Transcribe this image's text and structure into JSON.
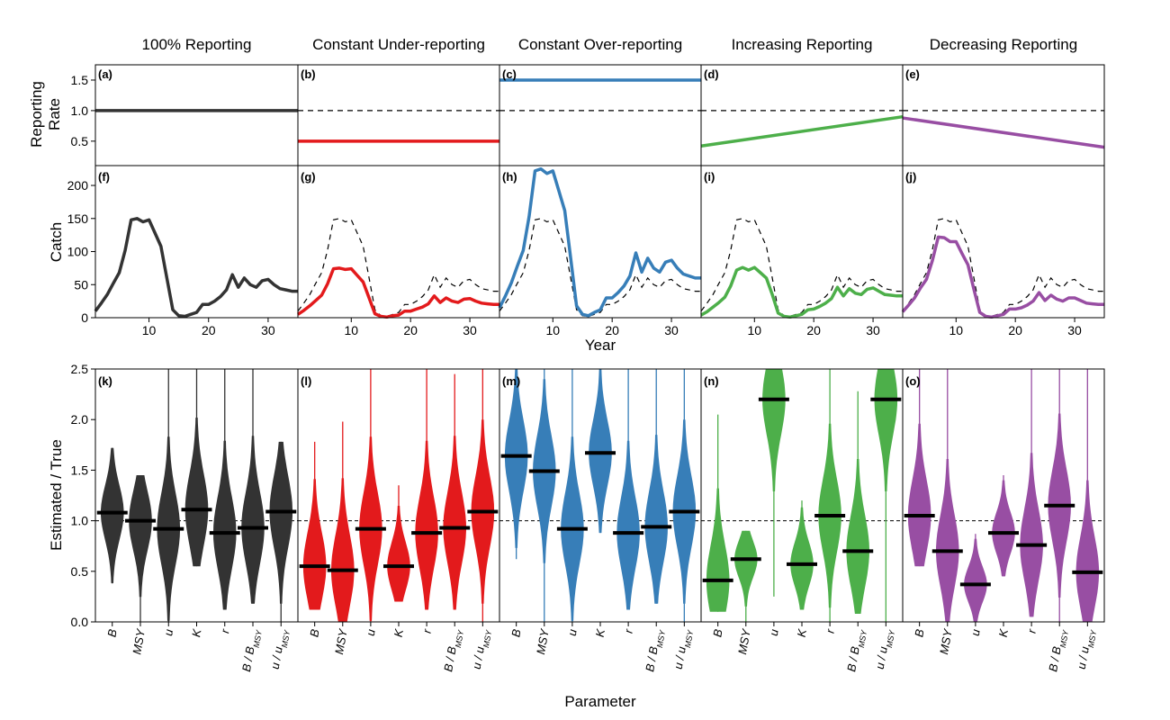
{
  "figure": {
    "row_labels": {
      "rate": "Reporting\nRate",
      "catch": "Catch",
      "ratio": "Estimated / True",
      "year": "Year",
      "parameter": "Parameter"
    }
  },
  "chart_data": [
    {
      "type": "line",
      "row": "reporting_rate",
      "ylabel": "Reporting Rate",
      "xlim": [
        1,
        35
      ],
      "ylim": [
        0.1,
        1.75
      ],
      "yticks": [
        0.5,
        1.0,
        1.5
      ],
      "yticklabels": [
        "0.5",
        "1.0",
        "1.5"
      ],
      "reference_line": 1.0,
      "panels": [
        {
          "letter": "(a)",
          "title": "100% Reporting",
          "color": "#333333",
          "start": 1.0,
          "end": 1.0,
          "dashed_reference": false
        },
        {
          "letter": "(b)",
          "title": "Constant Under-reporting",
          "color": "#E31A1C",
          "start": 0.5,
          "end": 0.5,
          "dashed_reference": true
        },
        {
          "letter": "(c)",
          "title": "Constant Over-reporting",
          "color": "#377EB8",
          "start": 1.5,
          "end": 1.5,
          "dashed_reference": true
        },
        {
          "letter": "(d)",
          "title": "Increasing Reporting",
          "color": "#4DAF4A",
          "start": 0.42,
          "end": 0.9,
          "dashed_reference": true
        },
        {
          "letter": "(e)",
          "title": "Decreasing Reporting",
          "color": "#984EA3",
          "start": 0.88,
          "end": 0.4,
          "dashed_reference": true
        }
      ]
    },
    {
      "type": "line",
      "row": "catch",
      "ylabel": "Catch",
      "xlabel": "Year",
      "xlim": [
        1,
        35
      ],
      "ylim": [
        0,
        230
      ],
      "yticks": [
        0,
        50,
        100,
        150,
        200
      ],
      "yticklabels": [
        "0",
        "50",
        "100",
        "150",
        "200"
      ],
      "xticks": [
        10,
        20,
        30
      ],
      "xticklabels": [
        "10",
        "20",
        "30"
      ],
      "years": [
        1,
        2,
        3,
        4,
        5,
        6,
        7,
        8,
        9,
        10,
        11,
        12,
        13,
        14,
        15,
        16,
        17,
        18,
        19,
        20,
        21,
        22,
        23,
        24,
        25,
        26,
        27,
        28,
        29,
        30,
        31,
        32,
        33,
        34,
        35
      ],
      "true_catch": [
        10,
        22,
        35,
        52,
        68,
        102,
        148,
        150,
        145,
        148,
        128,
        108,
        60,
        12,
        3,
        2,
        5,
        8,
        20,
        20,
        25,
        32,
        42,
        65,
        46,
        60,
        50,
        46,
        56,
        58,
        50,
        44,
        42,
        40,
        40
      ],
      "panels": [
        {
          "letter": "(f)",
          "color": "#333333",
          "reported": [
            10,
            22,
            35,
            52,
            68,
            102,
            148,
            150,
            145,
            148,
            128,
            108,
            60,
            12,
            3,
            2,
            5,
            8,
            20,
            20,
            25,
            32,
            42,
            65,
            46,
            60,
            50,
            46,
            56,
            58,
            50,
            44,
            42,
            40,
            40
          ],
          "dashed_reference": false
        },
        {
          "letter": "(g)",
          "color": "#E31A1C",
          "reported": [
            5,
            11,
            18,
            26,
            34,
            51,
            74,
            75,
            73,
            74,
            64,
            54,
            30,
            6,
            2,
            1,
            3,
            4,
            10,
            10,
            13,
            16,
            21,
            33,
            23,
            30,
            25,
            23,
            28,
            29,
            25,
            22,
            21,
            20,
            20
          ],
          "dashed_reference": true
        },
        {
          "letter": "(h)",
          "color": "#377EB8",
          "reported": [
            15,
            33,
            53,
            78,
            102,
            153,
            222,
            225,
            218,
            222,
            192,
            162,
            90,
            18,
            5,
            3,
            8,
            12,
            30,
            30,
            38,
            48,
            63,
            98,
            69,
            90,
            75,
            69,
            84,
            87,
            75,
            66,
            63,
            60,
            60
          ],
          "dashed_reference": true
        },
        {
          "letter": "(i)",
          "color": "#4DAF4A",
          "reported": [
            4,
            9,
            16,
            23,
            31,
            48,
            72,
            76,
            72,
            76,
            68,
            60,
            35,
            7,
            2,
            1,
            3,
            5,
            12,
            13,
            17,
            22,
            29,
            46,
            33,
            44,
            37,
            35,
            43,
            45,
            40,
            35,
            34,
            33,
            33
          ],
          "dashed_reference": true
        },
        {
          "letter": "(j)",
          "color": "#984EA3",
          "reported": [
            9,
            19,
            30,
            45,
            58,
            86,
            122,
            121,
            115,
            115,
            97,
            80,
            43,
            8,
            2,
            1,
            3,
            5,
            13,
            13,
            15,
            19,
            25,
            38,
            26,
            34,
            28,
            25,
            30,
            30,
            26,
            22,
            21,
            20,
            20
          ],
          "dashed_reference": true
        }
      ]
    },
    {
      "type": "violin",
      "row": "estimated_over_true",
      "ylabel": "Estimated / True",
      "xlabel": "Parameter",
      "ylim": [
        0,
        2.5
      ],
      "yticks": [
        0,
        0.5,
        1.0,
        1.5,
        2.0,
        2.5
      ],
      "yticklabels": [
        "0.0",
        "0.5",
        "1.0",
        "1.5",
        "2.0",
        "2.5"
      ],
      "reference_line": 1.0,
      "parameters": [
        {
          "label": "B"
        },
        {
          "label": "MSY"
        },
        {
          "label": "u"
        },
        {
          "label": "K"
        },
        {
          "label": "r"
        },
        {
          "label": "B / B",
          "sub": "MSY"
        },
        {
          "label": "u / u",
          "sub": "MSY"
        }
      ],
      "panels": [
        {
          "letter": "(k)",
          "color": "#333333",
          "medians": [
            1.08,
            1.0,
            0.92,
            1.11,
            0.88,
            0.93,
            1.09
          ],
          "lower": [
            0.38,
            0.0,
            0.0,
            0.55,
            0.12,
            0.18,
            0.0
          ],
          "upper": [
            1.72,
            1.45,
            2.5,
            2.5,
            2.5,
            2.5,
            1.78
          ]
        },
        {
          "letter": "(l)",
          "color": "#E31A1C",
          "medians": [
            0.55,
            0.51,
            0.92,
            0.55,
            0.88,
            0.93,
            1.09
          ],
          "lower": [
            0.12,
            0.0,
            0.0,
            0.2,
            0.12,
            0.12,
            0.0
          ],
          "upper": [
            1.78,
            1.98,
            2.5,
            1.35,
            2.5,
            2.45,
            2.5
          ]
        },
        {
          "letter": "(m)",
          "color": "#377EB8",
          "medians": [
            1.64,
            1.49,
            0.92,
            1.67,
            0.88,
            0.94,
            1.09
          ],
          "lower": [
            0.62,
            0.0,
            0.0,
            0.88,
            0.12,
            0.18,
            0.0
          ],
          "upper": [
            2.5,
            2.5,
            2.5,
            2.5,
            2.5,
            2.5,
            2.5
          ]
        },
        {
          "letter": "(n)",
          "color": "#4DAF4A",
          "medians": [
            0.41,
            0.62,
            2.2,
            0.57,
            1.05,
            0.7,
            2.2
          ],
          "lower": [
            0.1,
            0.0,
            0.25,
            0.12,
            0.0,
            0.08,
            0.0
          ],
          "upper": [
            2.05,
            0.9,
            2.5,
            1.2,
            2.5,
            2.28,
            2.5
          ]
        },
        {
          "letter": "(o)",
          "color": "#984EA3",
          "medians": [
            1.05,
            0.7,
            0.37,
            0.88,
            0.76,
            1.15,
            0.49
          ],
          "lower": [
            0.55,
            0.0,
            0.0,
            0.45,
            0.05,
            0.0,
            0.0
          ],
          "upper": [
            2.5,
            2.5,
            0.87,
            1.45,
            2.5,
            2.5,
            2.5
          ]
        }
      ]
    }
  ]
}
